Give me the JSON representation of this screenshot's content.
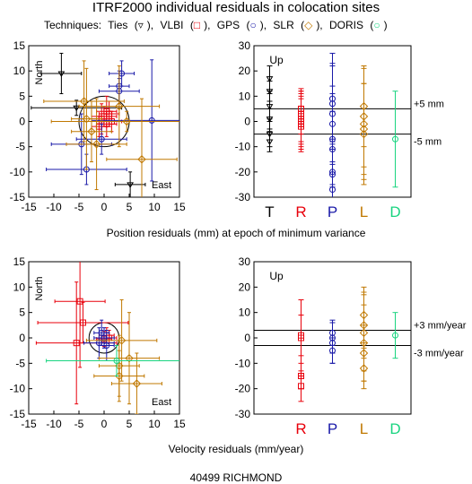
{
  "title": "ITRF2000  individual residuals in colocation sites",
  "techniques_legend": {
    "prefix": "Techniques:",
    "items": [
      {
        "name": "Ties",
        "symbol": "▿",
        "color": "#000000"
      },
      {
        "name": "VLBI",
        "symbol": "□",
        "color": "#e8000b"
      },
      {
        "name": "GPS",
        "symbol": "○",
        "color": "#1a1aa8"
      },
      {
        "name": "SLR",
        "symbol": "◇",
        "color": "#c07800"
      },
      {
        "name": "DORIS",
        "symbol": "○",
        "color": "#1ad480"
      }
    ]
  },
  "position_xlabel": "Position residuals (mm) at epoch of minimum variance",
  "velocity_xlabel": "Velocity residuals (mm/year)",
  "station": "40499 RICHMOND",
  "chart_data": [
    {
      "id": "position-horizontal",
      "type": "scatter",
      "xlim": [
        -15,
        15
      ],
      "ylim": [
        -15,
        15
      ],
      "xticks": [
        -15,
        -10,
        -5,
        0,
        5,
        10,
        15
      ],
      "yticks": [
        -15,
        -10,
        -5,
        0,
        5,
        10,
        15
      ],
      "north_label": "North",
      "east_label": "East",
      "circle_radius": 5,
      "points": [
        {
          "tech": "Ties",
          "x": -8.5,
          "y": 9.5,
          "xerr": 4,
          "yerr": 4
        },
        {
          "tech": "Ties",
          "x": -5.5,
          "y": 2.7,
          "xerr": 9,
          "yerr": 1.5
        },
        {
          "tech": "Ties",
          "x": 5.2,
          "y": -12.5,
          "xerr": 3,
          "yerr": 2.5
        },
        {
          "tech": "VLBI",
          "x": 0.5,
          "y": 2.0,
          "xerr": 2,
          "yerr": 3
        },
        {
          "tech": "VLBI",
          "x": 1.0,
          "y": 1.5,
          "xerr": 2,
          "yerr": 2.5
        },
        {
          "tech": "VLBI",
          "x": 0.0,
          "y": 1.0,
          "xerr": 2.5,
          "yerr": 2
        },
        {
          "tech": "VLBI",
          "x": -0.5,
          "y": 0.5,
          "xerr": 2,
          "yerr": 3
        },
        {
          "tech": "VLBI",
          "x": 1.5,
          "y": 0.0,
          "xerr": 2,
          "yerr": 2
        },
        {
          "tech": "VLBI",
          "x": 0.5,
          "y": -0.5,
          "xerr": 2,
          "yerr": 2.5
        },
        {
          "tech": "VLBI",
          "x": -1.0,
          "y": -1.0,
          "xerr": 1.5,
          "yerr": 2
        },
        {
          "tech": "GPS",
          "x": 3.5,
          "y": 9.5,
          "xerr": 2.5,
          "yerr": 2.5
        },
        {
          "tech": "GPS",
          "x": 3.0,
          "y": 7.0,
          "xerr": 2,
          "yerr": 3
        },
        {
          "tech": "GPS",
          "x": 3.0,
          "y": 6.0,
          "xerr": 4,
          "yerr": 2.5
        },
        {
          "tech": "GPS",
          "x": 9.5,
          "y": 0.2,
          "xerr": 12,
          "yerr": 12
        },
        {
          "tech": "GPS",
          "x": -3.5,
          "y": -9.5,
          "xerr": 8,
          "yerr": 3
        },
        {
          "tech": "GPS",
          "x": -0.5,
          "y": -3.5,
          "xerr": 5,
          "yerr": 3
        },
        {
          "tech": "GPS",
          "x": -4.5,
          "y": -4.5,
          "xerr": 6,
          "yerr": 6
        },
        {
          "tech": "SLR",
          "x": -4.0,
          "y": 4.0,
          "xerr": 8,
          "yerr": 8
        },
        {
          "tech": "SLR",
          "x": 3.0,
          "y": 3.0,
          "xerr": 8,
          "yerr": 8
        },
        {
          "tech": "SLR",
          "x": -3.5,
          "y": 0.5,
          "xerr": 3,
          "yerr": 10
        },
        {
          "tech": "SLR",
          "x": 7.5,
          "y": -7.5,
          "xerr": 7,
          "yerr": 12
        },
        {
          "tech": "SLR",
          "x": 4.5,
          "y": 0.0,
          "xerr": 15,
          "yerr": 2
        },
        {
          "tech": "SLR",
          "x": -2.5,
          "y": -2.0,
          "xerr": 4,
          "yerr": 6
        },
        {
          "tech": "SLR",
          "x": -1.5,
          "y": -4.5,
          "xerr": 6,
          "yerr": 9
        }
      ]
    },
    {
      "id": "position-up",
      "type": "scatter",
      "ylim": [
        -30,
        30
      ],
      "yticks": [
        -30,
        -20,
        -10,
        0,
        10,
        20,
        30
      ],
      "categories": [
        "T",
        "R",
        "P",
        "L",
        "D"
      ],
      "up_label": "Up",
      "threshold": 5,
      "threshold_labels": [
        "+5 mm",
        "-5 mm"
      ],
      "points": [
        {
          "tech": "Ties",
          "cat": 0,
          "y": 17,
          "err": 5
        },
        {
          "tech": "Ties",
          "cat": 0,
          "y": 12,
          "err": 4
        },
        {
          "tech": "Ties",
          "cat": 0,
          "y": 6,
          "err": 5
        },
        {
          "tech": "Ties",
          "cat": 0,
          "y": 1,
          "err": 4
        },
        {
          "tech": "Ties",
          "cat": 0,
          "y": -5,
          "err": 5
        },
        {
          "tech": "Ties",
          "cat": 0,
          "y": -8,
          "err": 4
        },
        {
          "tech": "VLBI",
          "cat": 1,
          "y": 5,
          "err": 7
        },
        {
          "tech": "VLBI",
          "cat": 1,
          "y": 3,
          "err": 8
        },
        {
          "tech": "VLBI",
          "cat": 1,
          "y": 2,
          "err": 10
        },
        {
          "tech": "VLBI",
          "cat": 1,
          "y": 1,
          "err": 12
        },
        {
          "tech": "VLBI",
          "cat": 1,
          "y": 0,
          "err": 9
        },
        {
          "tech": "VLBI",
          "cat": 1,
          "y": -1,
          "err": 11
        },
        {
          "tech": "VLBI",
          "cat": 1,
          "y": -2,
          "err": 8
        },
        {
          "tech": "GPS",
          "cat": 2,
          "y": 9,
          "err": 18
        },
        {
          "tech": "GPS",
          "cat": 2,
          "y": 7,
          "err": 15
        },
        {
          "tech": "GPS",
          "cat": 2,
          "y": 3,
          "err": 20
        },
        {
          "tech": "GPS",
          "cat": 2,
          "y": -1,
          "err": 15
        },
        {
          "tech": "GPS",
          "cat": 2,
          "y": -7,
          "err": 18
        },
        {
          "tech": "GPS",
          "cat": 2,
          "y": -11,
          "err": 15
        },
        {
          "tech": "GPS",
          "cat": 2,
          "y": -20,
          "err": 12
        },
        {
          "tech": "GPS",
          "cat": 2,
          "y": -21,
          "err": 10
        },
        {
          "tech": "GPS",
          "cat": 2,
          "y": -27,
          "err": 20
        },
        {
          "tech": "SLR",
          "cat": 3,
          "y": 6,
          "err": 16
        },
        {
          "tech": "SLR",
          "cat": 3,
          "y": 2,
          "err": 20
        },
        {
          "tech": "SLR",
          "cat": 3,
          "y": -1,
          "err": 22
        },
        {
          "tech": "SLR",
          "cat": 3,
          "y": -3,
          "err": 18
        },
        {
          "tech": "SLR",
          "cat": 3,
          "y": -5,
          "err": 20
        },
        {
          "tech": "DORIS",
          "cat": 4,
          "y": -7,
          "err": 19
        }
      ]
    },
    {
      "id": "velocity-horizontal",
      "type": "scatter",
      "xlim": [
        -15,
        15
      ],
      "ylim": [
        -15,
        15
      ],
      "xticks": [
        -15,
        -10,
        -5,
        0,
        5,
        10,
        15
      ],
      "yticks": [
        -15,
        -10,
        -5,
        0,
        5,
        10,
        15
      ],
      "north_label": "North",
      "east_label": "East",
      "circle_radius": 3,
      "points": [
        {
          "tech": "VLBI",
          "x": -4.8,
          "y": 7.2,
          "xerr": 5,
          "yerr": 13
        },
        {
          "tech": "VLBI",
          "x": -4.2,
          "y": 3.0,
          "xerr": 9,
          "yerr": 4
        },
        {
          "tech": "VLBI",
          "x": -5.5,
          "y": -1.0,
          "xerr": 8,
          "yerr": 12
        },
        {
          "tech": "VLBI",
          "x": 0.5,
          "y": 0.5,
          "xerr": 1.5,
          "yerr": 1.5
        },
        {
          "tech": "VLBI",
          "x": 0.0,
          "y": -0.2,
          "xerr": 1.5,
          "yerr": 1.5
        },
        {
          "tech": "VLBI",
          "x": 1.0,
          "y": 0.0,
          "xerr": 1.5,
          "yerr": 1.5
        },
        {
          "tech": "GPS",
          "x": -0.5,
          "y": 1.0,
          "xerr": 1.5,
          "yerr": 2.5
        },
        {
          "tech": "GPS",
          "x": 0.0,
          "y": 0.0,
          "xerr": 2,
          "yerr": 2
        },
        {
          "tech": "GPS",
          "x": -1.0,
          "y": -1.0,
          "xerr": 3,
          "yerr": 3
        },
        {
          "tech": "GPS",
          "x": 0.5,
          "y": -1.5,
          "xerr": 1.5,
          "yerr": 3
        },
        {
          "tech": "SLR",
          "x": 3.5,
          "y": -0.5,
          "xerr": 7,
          "yerr": 8
        },
        {
          "tech": "SLR",
          "x": 5.0,
          "y": -4.0,
          "xerr": 6,
          "yerr": 9
        },
        {
          "tech": "SLR",
          "x": 6.5,
          "y": -9.0,
          "xerr": 5,
          "yerr": 6
        },
        {
          "tech": "SLR",
          "x": 3.0,
          "y": -7.5,
          "xerr": 5,
          "yerr": 5
        },
        {
          "tech": "SLR",
          "x": 3.0,
          "y": -5.5,
          "xerr": 4,
          "yerr": 6
        },
        {
          "tech": "DORIS",
          "x": 2.5,
          "y": -4.5,
          "xerr": 14,
          "yerr": 3
        }
      ]
    },
    {
      "id": "velocity-up",
      "type": "scatter",
      "ylim": [
        -30,
        30
      ],
      "yticks": [
        -30,
        -20,
        -10,
        0,
        10,
        20,
        30
      ],
      "categories": [
        "R",
        "P",
        "L",
        "D"
      ],
      "category_positions": [
        1,
        2,
        3,
        4
      ],
      "up_label": "Up",
      "threshold": 3,
      "threshold_labels": [
        "+3 mm/year",
        "-3 mm/year"
      ],
      "points": [
        {
          "tech": "VLBI",
          "cat": 1,
          "y": 1,
          "err": 8
        },
        {
          "tech": "VLBI",
          "cat": 1,
          "y": 0,
          "err": 15
        },
        {
          "tech": "VLBI",
          "cat": 1,
          "y": -15,
          "err": 5
        },
        {
          "tech": "VLBI",
          "cat": 1,
          "y": -19,
          "err": 6
        },
        {
          "tech": "GPS",
          "cat": 2,
          "y": 2,
          "err": 5
        },
        {
          "tech": "GPS",
          "cat": 2,
          "y": 0,
          "err": 6
        },
        {
          "tech": "GPS",
          "cat": 2,
          "y": -2,
          "err": 8
        },
        {
          "tech": "GPS",
          "cat": 2,
          "y": -5,
          "err": 5
        },
        {
          "tech": "SLR",
          "cat": 3,
          "y": 9,
          "err": 11
        },
        {
          "tech": "SLR",
          "cat": 3,
          "y": 5,
          "err": 13
        },
        {
          "tech": "SLR",
          "cat": 3,
          "y": 2,
          "err": 15
        },
        {
          "tech": "SLR",
          "cat": 3,
          "y": -2,
          "err": 15
        },
        {
          "tech": "SLR",
          "cat": 3,
          "y": -6,
          "err": 11
        },
        {
          "tech": "SLR",
          "cat": 3,
          "y": -12,
          "err": 8
        },
        {
          "tech": "DORIS",
          "cat": 4,
          "y": 1,
          "err": 9
        }
      ]
    }
  ]
}
